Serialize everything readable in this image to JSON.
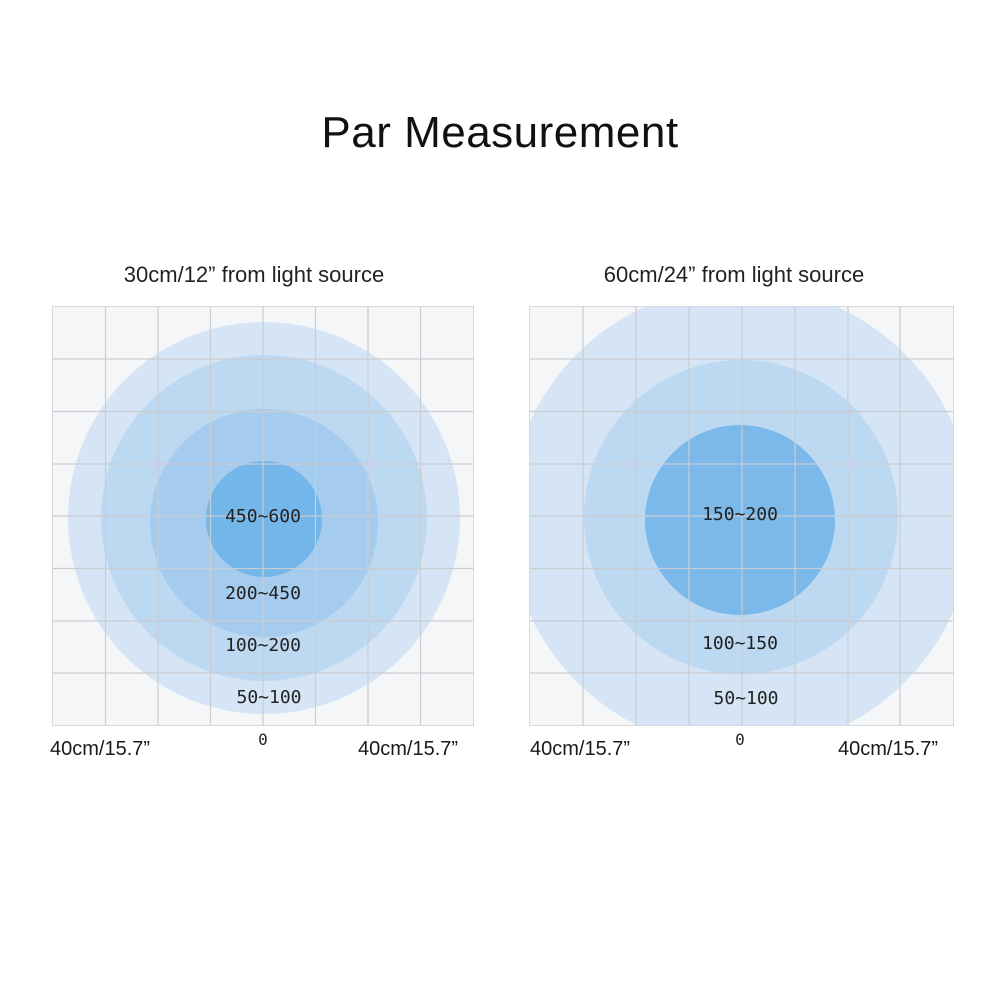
{
  "title": "Par Measurement",
  "colors": {
    "ring_outer": "#d3e4f4",
    "ring_2": "#bcd7f0",
    "ring_3": "#a3cbee",
    "ring_center": "#73b6ea",
    "grid_line": "#c9ccd1",
    "grid_bg": "#f5f6f8"
  },
  "panels": [
    {
      "title": "30cm/12” from light source",
      "rings": [
        {
          "label": "50~100"
        },
        {
          "label": "100~200"
        },
        {
          "label": "200~450"
        },
        {
          "label": "450~600"
        }
      ],
      "axis_left": "40cm/15.7”",
      "axis_center": "0",
      "axis_right": "40cm/15.7”"
    },
    {
      "title": "60cm/24” from light source",
      "rings": [
        {
          "label": "50~100"
        },
        {
          "label": "100~150"
        },
        {
          "label": "150~200"
        }
      ],
      "axis_left": "40cm/15.7”",
      "axis_center": "0",
      "axis_right": "40cm/15.7”"
    }
  ]
}
